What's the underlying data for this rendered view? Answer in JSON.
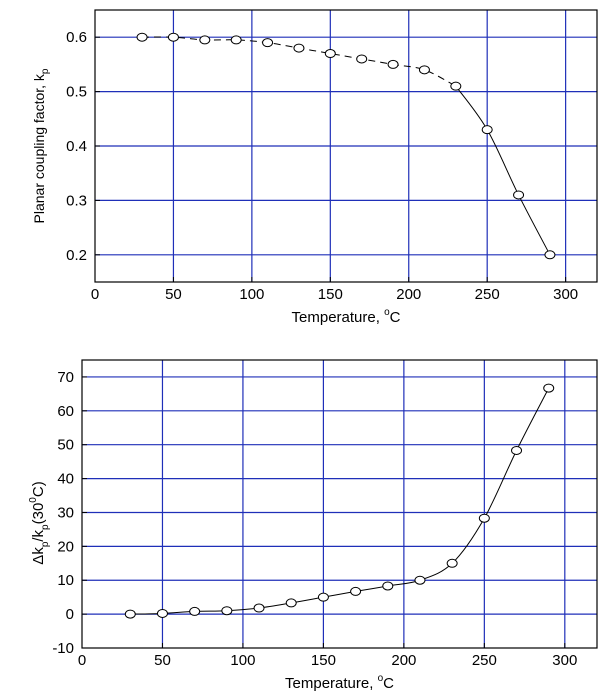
{
  "chart_data": [
    {
      "type": "line",
      "xlabel": "Temperature, ",
      "xlabel_sup": "o",
      "xlabel_unit": "C",
      "ylabel": "Planar coupling factor, k",
      "ylabel_sub": "p",
      "xlim": [
        0,
        320
      ],
      "ylim": [
        0.15,
        0.65
      ],
      "xticks": [
        0,
        50,
        100,
        150,
        200,
        250,
        300
      ],
      "yticks": [
        0.2,
        0.3,
        0.4,
        0.5,
        0.6
      ],
      "grid": true,
      "line_style": "dashed-then-solid",
      "series": [
        {
          "x": [
            30,
            50,
            70,
            90,
            110,
            130,
            150,
            170,
            190,
            210,
            230,
            250,
            270,
            290
          ],
          "y": [
            0.6,
            0.6,
            0.595,
            0.595,
            0.59,
            0.58,
            0.57,
            0.56,
            0.55,
            0.54,
            0.51,
            0.43,
            0.31,
            0.2
          ]
        }
      ]
    },
    {
      "type": "line",
      "xlabel": "Temperature, ",
      "xlabel_sup": "o",
      "xlabel_unit": "C",
      "ylabel_parts": [
        "Δk",
        "p",
        "/k",
        "p",
        "(30",
        "0",
        "C)"
      ],
      "xlim": [
        0,
        320
      ],
      "ylim": [
        -10,
        75
      ],
      "xticks": [
        0,
        50,
        100,
        150,
        200,
        250,
        300
      ],
      "yticks": [
        -10,
        0,
        10,
        20,
        30,
        40,
        50,
        60,
        70
      ],
      "grid": true,
      "series": [
        {
          "x": [
            30,
            50,
            70,
            90,
            110,
            130,
            150,
            170,
            190,
            210,
            230,
            250,
            270,
            290
          ],
          "y": [
            0,
            0.2,
            0.8,
            1,
            1.8,
            3.3,
            5,
            6.7,
            8.3,
            10,
            15,
            28.3,
            48.3,
            66.7
          ]
        }
      ]
    }
  ]
}
